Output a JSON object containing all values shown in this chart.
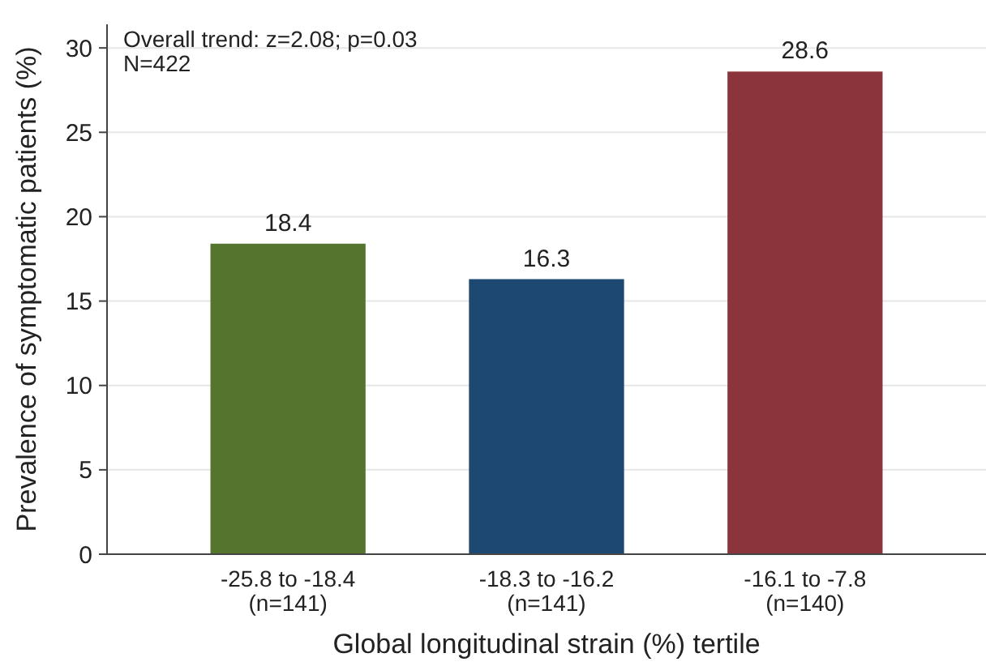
{
  "chart_data": {
    "type": "bar",
    "xlabel": "Global longitudinal strain (%) tertile",
    "ylabel": "Prevalence of symptomatic patients (%)",
    "categories": [
      "-25.8 to -18.4\n(n=141)",
      "-18.3 to -16.2\n(n=141)",
      "-16.1 to -7.8\n(n=140)"
    ],
    "values": [
      18.4,
      16.3,
      28.6
    ],
    "colors": [
      "#55752f",
      "#1d4871",
      "#8c343b"
    ],
    "data_labels": true,
    "ylim": [
      0,
      31.4
    ],
    "yticks": [
      0,
      5,
      10,
      15,
      20,
      25,
      30
    ],
    "grid": "y",
    "annotations": [
      "Overall trend: z=2.08; p=0.03",
      "N=422"
    ]
  }
}
